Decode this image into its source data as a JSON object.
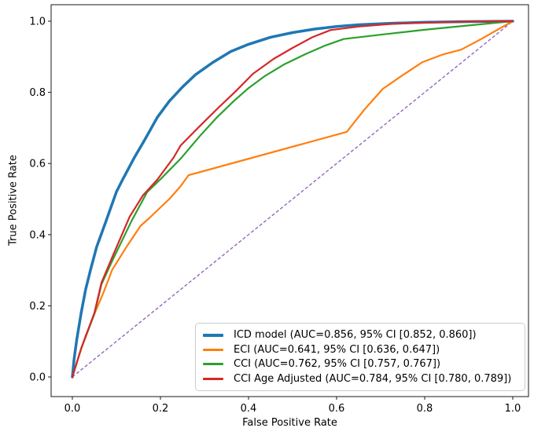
{
  "chart_data": {
    "type": "line",
    "subtype": "roc-curves",
    "title": "",
    "xlabel": "False Positive Rate",
    "ylabel": "True Positive Rate",
    "xlim": [
      -0.05,
      1.05
    ],
    "ylim": [
      -0.05,
      1.05
    ],
    "grid": false,
    "legend_position": "lower right",
    "background_color": "#ffffff",
    "spine_color": "#1a1a1a",
    "text_color": "#000000",
    "legend_border_color": "#cccccc",
    "x_ticks": {
      "values": [
        0,
        0.2,
        0.4,
        0.6,
        0.8,
        1.0
      ],
      "labels": [
        "0.0",
        "0.2",
        "0.4",
        "0.6",
        "0.8",
        "1.0"
      ]
    },
    "y_ticks": {
      "values": [
        0,
        0.2,
        0.4,
        0.6,
        0.8,
        1.0
      ],
      "labels": [
        "0.0",
        "0.2",
        "0.4",
        "0.6",
        "0.8",
        "1.0"
      ]
    },
    "series": [
      {
        "name": "ICD model (AUC=0.856, 95% CI [0.852, 0.860])",
        "auc": 0.856,
        "ci_low": 0.852,
        "ci_high": 0.86,
        "color": "#1f77b4",
        "linewidth": 3.5,
        "linestyle": "solid",
        "points": [
          [
            0,
            0
          ],
          [
            0.004,
            0.05
          ],
          [
            0.01,
            0.105
          ],
          [
            0.02,
            0.18
          ],
          [
            0.03,
            0.245
          ],
          [
            0.041,
            0.3
          ],
          [
            0.055,
            0.365
          ],
          [
            0.077,
            0.44
          ],
          [
            0.1,
            0.52
          ],
          [
            0.113,
            0.552
          ],
          [
            0.14,
            0.615
          ],
          [
            0.165,
            0.668
          ],
          [
            0.193,
            0.73
          ],
          [
            0.22,
            0.775
          ],
          [
            0.25,
            0.815
          ],
          [
            0.28,
            0.85
          ],
          [
            0.32,
            0.885
          ],
          [
            0.36,
            0.915
          ],
          [
            0.4,
            0.935
          ],
          [
            0.45,
            0.955
          ],
          [
            0.5,
            0.968
          ],
          [
            0.55,
            0.978
          ],
          [
            0.6,
            0.985
          ],
          [
            0.65,
            0.99
          ],
          [
            0.72,
            0.994
          ],
          [
            0.8,
            0.997
          ],
          [
            0.9,
            0.999
          ],
          [
            1,
            1
          ]
        ]
      },
      {
        "name": "ECI (AUC=0.641, 95% CI [0.636, 0.647])",
        "auc": 0.641,
        "ci_low": 0.636,
        "ci_high": 0.647,
        "color": "#ff7f0e",
        "linewidth": 2.2,
        "linestyle": "solid",
        "points": [
          [
            0,
            0
          ],
          [
            0.015,
            0.06
          ],
          [
            0.03,
            0.115
          ],
          [
            0.05,
            0.177
          ],
          [
            0.07,
            0.235
          ],
          [
            0.09,
            0.3
          ],
          [
            0.12,
            0.36
          ],
          [
            0.155,
            0.425
          ],
          [
            0.175,
            0.447
          ],
          [
            0.22,
            0.5
          ],
          [
            0.245,
            0.535
          ],
          [
            0.264,
            0.567
          ],
          [
            0.623,
            0.689
          ],
          [
            0.662,
            0.75
          ],
          [
            0.705,
            0.81
          ],
          [
            0.746,
            0.845
          ],
          [
            0.795,
            0.885
          ],
          [
            0.84,
            0.906
          ],
          [
            0.883,
            0.92
          ],
          [
            0.93,
            0.951
          ],
          [
            0.965,
            0.976
          ],
          [
            1,
            1
          ]
        ]
      },
      {
        "name": "CCI (AUC=0.762, 95% CI [0.757, 0.767])",
        "auc": 0.762,
        "ci_low": 0.757,
        "ci_high": 0.767,
        "color": "#2ca02c",
        "linewidth": 2.2,
        "linestyle": "solid",
        "points": [
          [
            0,
            0
          ],
          [
            0.02,
            0.08
          ],
          [
            0.05,
            0.177
          ],
          [
            0.066,
            0.26
          ],
          [
            0.09,
            0.325
          ],
          [
            0.135,
            0.44
          ],
          [
            0.17,
            0.52
          ],
          [
            0.202,
            0.558
          ],
          [
            0.246,
            0.614
          ],
          [
            0.29,
            0.678
          ],
          [
            0.327,
            0.728
          ],
          [
            0.366,
            0.775
          ],
          [
            0.4,
            0.812
          ],
          [
            0.436,
            0.845
          ],
          [
            0.48,
            0.878
          ],
          [
            0.53,
            0.908
          ],
          [
            0.575,
            0.932
          ],
          [
            0.616,
            0.95
          ],
          [
            0.7,
            0.962
          ],
          [
            0.8,
            0.976
          ],
          [
            0.9,
            0.988
          ],
          [
            1,
            1
          ]
        ]
      },
      {
        "name": "CCI Age Adjusted (AUC=0.784, 95% CI [0.780, 0.789])",
        "auc": 0.784,
        "ci_low": 0.78,
        "ci_high": 0.789,
        "color": "#d62728",
        "linewidth": 2.2,
        "linestyle": "solid",
        "points": [
          [
            0,
            0
          ],
          [
            0.02,
            0.08
          ],
          [
            0.05,
            0.18
          ],
          [
            0.066,
            0.265
          ],
          [
            0.09,
            0.335
          ],
          [
            0.13,
            0.45
          ],
          [
            0.16,
            0.51
          ],
          [
            0.193,
            0.555
          ],
          [
            0.23,
            0.617
          ],
          [
            0.246,
            0.651
          ],
          [
            0.29,
            0.706
          ],
          [
            0.33,
            0.755
          ],
          [
            0.37,
            0.802
          ],
          [
            0.41,
            0.852
          ],
          [
            0.457,
            0.894
          ],
          [
            0.5,
            0.925
          ],
          [
            0.545,
            0.955
          ],
          [
            0.586,
            0.975
          ],
          [
            0.65,
            0.985
          ],
          [
            0.72,
            0.992
          ],
          [
            0.8,
            0.996
          ],
          [
            0.9,
            0.999
          ],
          [
            1,
            1
          ]
        ]
      }
    ],
    "reference_line": {
      "name": "chance-diagonal",
      "color": "#9467bd",
      "linewidth": 1.4,
      "linestyle": "dashed",
      "points": [
        [
          0,
          0
        ],
        [
          1,
          1
        ]
      ]
    }
  }
}
